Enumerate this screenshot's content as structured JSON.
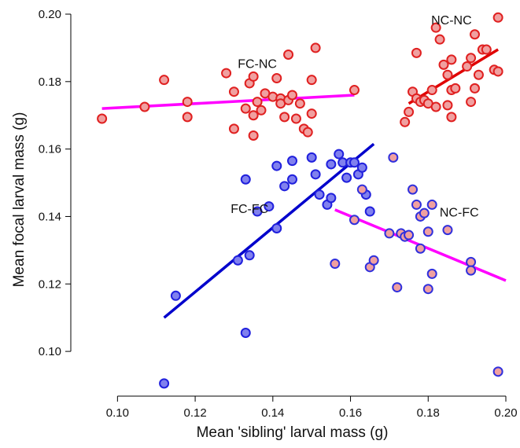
{
  "chart_data": {
    "type": "scatter",
    "title": "",
    "xlabel": "Mean 'sibling' larval mass (g)",
    "ylabel": "Mean focal larval mass (g)",
    "xlim": [
      0.09,
      0.2
    ],
    "ylim": [
      0.09,
      0.2
    ],
    "x_ticks": [
      "0.10",
      "0.12",
      "0.14",
      "0.16",
      "0.18",
      "0.20"
    ],
    "y_ticks": [
      "0.10",
      "0.12",
      "0.14",
      "0.16",
      "0.18",
      "0.20"
    ],
    "grid": false,
    "legend": "none",
    "series": [
      {
        "name": "FC-NC",
        "marker_fill": "#f0a0a0",
        "marker_stroke": "#e02020",
        "line_color": "#ff00ff",
        "fit": {
          "x": [
            0.096,
            0.161
          ],
          "y": [
            0.172,
            0.176
          ]
        },
        "points": [
          [
            0.096,
            0.169
          ],
          [
            0.107,
            0.1725
          ],
          [
            0.112,
            0.1805
          ],
          [
            0.118,
            0.174
          ],
          [
            0.118,
            0.1695
          ],
          [
            0.128,
            0.1825
          ],
          [
            0.13,
            0.177
          ],
          [
            0.13,
            0.166
          ],
          [
            0.133,
            0.172
          ],
          [
            0.134,
            0.1795
          ],
          [
            0.135,
            0.1815
          ],
          [
            0.135,
            0.164
          ],
          [
            0.135,
            0.17
          ],
          [
            0.136,
            0.174
          ],
          [
            0.137,
            0.1715
          ],
          [
            0.138,
            0.1765
          ],
          [
            0.14,
            0.1755
          ],
          [
            0.141,
            0.181
          ],
          [
            0.142,
            0.175
          ],
          [
            0.142,
            0.1735
          ],
          [
            0.143,
            0.1695
          ],
          [
            0.144,
            0.188
          ],
          [
            0.144,
            0.1745
          ],
          [
            0.145,
            0.176
          ],
          [
            0.146,
            0.169
          ],
          [
            0.147,
            0.1735
          ],
          [
            0.148,
            0.166
          ],
          [
            0.149,
            0.165
          ],
          [
            0.15,
            0.1705
          ],
          [
            0.15,
            0.1805
          ],
          [
            0.151,
            0.19
          ],
          [
            0.161,
            0.1775
          ]
        ]
      },
      {
        "name": "NC-NC",
        "marker_fill": "#f0a0a0",
        "marker_stroke": "#e02020",
        "line_color": "#e00000",
        "fit": {
          "x": [
            0.175,
            0.198
          ],
          "y": [
            0.1735,
            0.1895
          ]
        },
        "points": [
          [
            0.174,
            0.168
          ],
          [
            0.175,
            0.171
          ],
          [
            0.176,
            0.177
          ],
          [
            0.177,
            0.175
          ],
          [
            0.177,
            0.1885
          ],
          [
            0.178,
            0.174
          ],
          [
            0.179,
            0.1745
          ],
          [
            0.18,
            0.1735
          ],
          [
            0.181,
            0.1775
          ],
          [
            0.182,
            0.196
          ],
          [
            0.182,
            0.1725
          ],
          [
            0.183,
            0.1925
          ],
          [
            0.184,
            0.185
          ],
          [
            0.185,
            0.182
          ],
          [
            0.185,
            0.173
          ],
          [
            0.186,
            0.1695
          ],
          [
            0.186,
            0.1775
          ],
          [
            0.186,
            0.1865
          ],
          [
            0.187,
            0.178
          ],
          [
            0.19,
            0.1845
          ],
          [
            0.191,
            0.174
          ],
          [
            0.191,
            0.187
          ],
          [
            0.192,
            0.194
          ],
          [
            0.192,
            0.178
          ],
          [
            0.193,
            0.182
          ],
          [
            0.194,
            0.1895
          ],
          [
            0.195,
            0.1895
          ],
          [
            0.197,
            0.1835
          ],
          [
            0.198,
            0.199
          ],
          [
            0.198,
            0.183
          ]
        ]
      },
      {
        "name": "FC-FC",
        "marker_fill": "#8080ee",
        "marker_stroke": "#2020dd",
        "line_color": "#0000cc",
        "fit": {
          "x": [
            0.112,
            0.166
          ],
          "y": [
            0.11,
            0.1615
          ]
        },
        "points": [
          [
            0.112,
            0.0905
          ],
          [
            0.115,
            0.1165
          ],
          [
            0.131,
            0.127
          ],
          [
            0.133,
            0.151
          ],
          [
            0.133,
            0.1055
          ],
          [
            0.134,
            0.1285
          ],
          [
            0.136,
            0.1415
          ],
          [
            0.139,
            0.143
          ],
          [
            0.141,
            0.155
          ],
          [
            0.141,
            0.1365
          ],
          [
            0.143,
            0.149
          ],
          [
            0.145,
            0.1565
          ],
          [
            0.145,
            0.151
          ],
          [
            0.15,
            0.1575
          ],
          [
            0.151,
            0.1525
          ],
          [
            0.152,
            0.1465
          ],
          [
            0.154,
            0.1435
          ],
          [
            0.155,
            0.1555
          ],
          [
            0.155,
            0.1455
          ],
          [
            0.157,
            0.1585
          ],
          [
            0.158,
            0.156
          ],
          [
            0.159,
            0.1515
          ],
          [
            0.16,
            0.156
          ],
          [
            0.161,
            0.156
          ],
          [
            0.162,
            0.1525
          ],
          [
            0.163,
            0.1545
          ],
          [
            0.164,
            0.1465
          ],
          [
            0.165,
            0.1415
          ]
        ]
      },
      {
        "name": "NC-FC",
        "marker_fill": "#f0a0a0",
        "marker_stroke": "#3030dd",
        "line_color": "#ff00ff",
        "fit": {
          "x": [
            0.156,
            0.2
          ],
          "y": [
            0.142,
            0.121
          ]
        },
        "points": [
          [
            0.156,
            0.126
          ],
          [
            0.161,
            0.139
          ],
          [
            0.163,
            0.148
          ],
          [
            0.165,
            0.125
          ],
          [
            0.166,
            0.127
          ],
          [
            0.17,
            0.135
          ],
          [
            0.171,
            0.1575
          ],
          [
            0.172,
            0.119
          ],
          [
            0.173,
            0.135
          ],
          [
            0.174,
            0.134
          ],
          [
            0.175,
            0.1345
          ],
          [
            0.176,
            0.148
          ],
          [
            0.177,
            0.1435
          ],
          [
            0.178,
            0.14
          ],
          [
            0.178,
            0.1305
          ],
          [
            0.179,
            0.141
          ],
          [
            0.18,
            0.1185
          ],
          [
            0.18,
            0.1355
          ],
          [
            0.181,
            0.123
          ],
          [
            0.181,
            0.1435
          ],
          [
            0.185,
            0.136
          ],
          [
            0.191,
            0.1265
          ],
          [
            0.191,
            0.124
          ],
          [
            0.198,
            0.094
          ]
        ]
      }
    ],
    "annotations": [
      {
        "text": "FC-NC",
        "x": 0.136,
        "y": 0.184
      },
      {
        "text": "NC-NC",
        "x": 0.186,
        "y": 0.197
      },
      {
        "text": "FC-FC",
        "x": 0.134,
        "y": 0.141
      },
      {
        "text": "NC-FC",
        "x": 0.188,
        "y": 0.14
      }
    ]
  }
}
